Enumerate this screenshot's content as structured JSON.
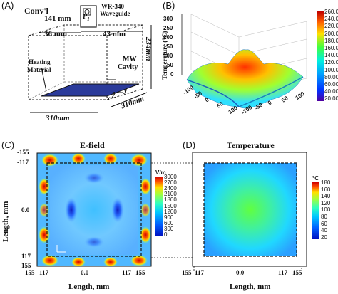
{
  "panels": {
    "a": {
      "letter": "(A)",
      "conv_label": "Conv'l",
      "port_label": "P",
      "port_sub": "1",
      "dim_141": "141 mm",
      "dim_36": "36 mm",
      "dim_43": "43 mm",
      "waveguide_line1": "WR-340",
      "waveguide_line2": "Waveguide",
      "dim_234": "234mm",
      "heating_line1": "Heating",
      "heating_line2": "Material",
      "mw_line1": "MW",
      "mw_line2": "Cavity",
      "dim_310a": "310mm",
      "dim_310b": "310mm",
      "axis_x": "x",
      "axis_y": "y",
      "axis_z": "z"
    },
    "b": {
      "letter": "(B)",
      "zlabel": "Temperature (°C)",
      "zticks": [
        "0",
        "50",
        "100",
        "150",
        "200",
        "250",
        "300"
      ],
      "xticks": [
        "-100",
        "-50",
        "0",
        "50",
        "100"
      ],
      "yticks": [
        "-100",
        "-50",
        "0",
        "50",
        "100"
      ],
      "colorbar_ticks": [
        "260.0",
        "240.0",
        "220.0",
        "200.0",
        "180.0",
        "160.0",
        "140.0",
        "120.0",
        "100.0",
        "80.00",
        "60.00",
        "40.00",
        "20.00"
      ]
    },
    "c": {
      "letter": "(C)",
      "title": "E-field",
      "ylabel": "Length, mm",
      "xlabel": "Length, mm",
      "yticks": [
        "-155",
        "-117",
        "0.0",
        "117",
        "155"
      ],
      "xticks": [
        "-155",
        "-117",
        "0.0",
        "117",
        "155"
      ],
      "colorbar_unit": "V/m",
      "colorbar_ticks": [
        "3000",
        "2700",
        "2400",
        "2100",
        "1800",
        "1500",
        "1200",
        "900",
        "600",
        "300",
        "0"
      ]
    },
    "d": {
      "letter": "(D)",
      "title": "Temperature",
      "xlabel": "Length, mm",
      "xticks": [
        "-155",
        "-117",
        "0.0",
        "117",
        "155"
      ],
      "colorbar_unit": "°C",
      "colorbar_ticks": [
        "180",
        "160",
        "140",
        "120",
        "100",
        "80",
        "60",
        "40",
        "20"
      ]
    }
  },
  "colors": {
    "jet_low": "#00007f",
    "jet_blue": "#0050ff",
    "jet_cyan": "#00e0ff",
    "jet_green": "#40ff40",
    "jet_yellow": "#ffe000",
    "jet_red": "#e00000",
    "load_fill": "#2a3a9a"
  }
}
